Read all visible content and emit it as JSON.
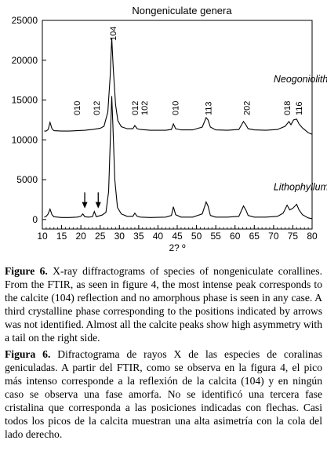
{
  "chart_data": {
    "type": "line",
    "title": "Nongeniculate genera",
    "xlabel": "2? º",
    "ylabel": "",
    "xlim": [
      10,
      80
    ],
    "ylim": [
      -1200,
      25000
    ],
    "x_ticks": [
      10,
      15,
      20,
      25,
      30,
      35,
      40,
      45,
      50,
      55,
      60,
      65,
      70,
      75,
      80
    ],
    "y_ticks": [
      0,
      5000,
      10000,
      15000,
      20000,
      25000
    ],
    "grid": false,
    "series": [
      {
        "name": "Neogoniolithon",
        "x": [
          10.5,
          11,
          11.5,
          12,
          12.5,
          13,
          15,
          17,
          19,
          21,
          23,
          25,
          26,
          27,
          27.6,
          28,
          28.4,
          29,
          29.6,
          30.5,
          32,
          33.5,
          34,
          34.6,
          35.5,
          38,
          42,
          43.5,
          44,
          44.6,
          46,
          49,
          51.5,
          52.5,
          53,
          53.6,
          55,
          58,
          61,
          62.2,
          62.8,
          63.4,
          65,
          68,
          71,
          73,
          74,
          74.5,
          75.2,
          76,
          76.6,
          77.5,
          79,
          80
        ],
        "y": [
          11100,
          11100,
          11300,
          12200,
          11400,
          11150,
          11100,
          11100,
          11150,
          11200,
          11300,
          11450,
          11700,
          13500,
          18000,
          22800,
          19000,
          14400,
          12400,
          11650,
          11400,
          11400,
          11800,
          11400,
          11300,
          11200,
          11200,
          11300,
          12000,
          11400,
          11250,
          11250,
          11600,
          12800,
          12500,
          11600,
          11250,
          11200,
          11300,
          12300,
          11900,
          11400,
          11250,
          11200,
          11300,
          11700,
          12300,
          11900,
          12500,
          12600,
          12000,
          11500,
          10900,
          10700
        ]
      },
      {
        "name": "Lithophyllum",
        "x": [
          10.5,
          11,
          11.5,
          12,
          12.5,
          13,
          15,
          17,
          19,
          20,
          20.5,
          21,
          22,
          23,
          23.5,
          24,
          24.8,
          25.5,
          26.5,
          27.2,
          27.7,
          28,
          28.3,
          28.8,
          29.5,
          30.5,
          32,
          33.5,
          34,
          34.6,
          35.5,
          38,
          42,
          43.5,
          44,
          44.6,
          46,
          49,
          51.5,
          52.5,
          53,
          53.6,
          55,
          58,
          61,
          62.2,
          62.8,
          63.4,
          65,
          68,
          71,
          72.5,
          73.5,
          74.2,
          75,
          76,
          76.6,
          77.5,
          79,
          80
        ],
        "y": [
          300,
          400,
          700,
          1300,
          600,
          350,
          250,
          250,
          300,
          400,
          700,
          350,
          300,
          350,
          1000,
          350,
          450,
          550,
          900,
          3500,
          11000,
          15500,
          12000,
          5000,
          1500,
          700,
          400,
          400,
          800,
          400,
          300,
          250,
          300,
          500,
          1600,
          600,
          300,
          300,
          700,
          2200,
          1700,
          500,
          300,
          300,
          400,
          1700,
          1200,
          500,
          300,
          300,
          400,
          800,
          1800,
          1200,
          1400,
          1900,
          1200,
          600,
          200,
          100
        ]
      }
    ],
    "peak_labels": [
      {
        "text": "010",
        "x": 19
      },
      {
        "text": "012",
        "x": 24
      },
      {
        "text": "104",
        "x": 28.3
      },
      {
        "text": "012",
        "x": 34
      },
      {
        "text": "102",
        "x": 36.5
      },
      {
        "text": "010",
        "x": 44.5
      },
      {
        "text": "113",
        "x": 53
      },
      {
        "text": "202",
        "x": 63
      },
      {
        "text": "018",
        "x": 73.5
      },
      {
        "text": "116",
        "x": 76.5
      }
    ],
    "arrows_at": [
      21,
      24.5
    ]
  },
  "captions": {
    "en_label": "Figure 6.",
    "en_text": " X-ray diffractograms of species of nongeniculate corallines. From the FTIR, as seen in figure 4, the most intense peak corresponds to the calcite (104) reflection and no amorphous phase is seen in any case. A third crystalline phase corresponding to the positions indicated by arrows was not identified. Almost all the calcite peaks show high asymmetry with a tail on the right side.",
    "es_label": "Figura 6.",
    "es_text": " Difractograma de rayos X de las especies de coralinas geniculadas. A partir del FTIR, como se observa en la figura 4, el pico más intenso corresponde a la reflexión de la calcita (104) y en ningún caso se observa una fase amorfa. No se identificó una tercera fase cristalina que corresponda a las posiciones indicadas con flechas. Casi todos los picos de la calcita muestran una alta asimetría con la cola del lado derecho."
  }
}
